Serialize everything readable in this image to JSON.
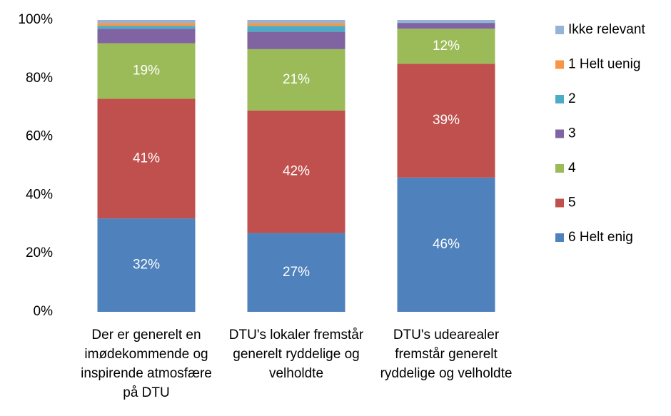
{
  "chart_data": {
    "type": "stacked_bar",
    "categories": [
      "Der er generelt en imødekommende og inspirende atmosfære på DTU",
      "DTU's lokaler fremstår generelt ryddelige og velholdte",
      "DTU's udearealer fremstår generelt ryddelige og velholdte"
    ],
    "series": [
      {
        "name": "6 Helt enig",
        "color": "#4f81bd",
        "values": [
          32,
          27,
          46
        ],
        "value_labels": [
          "32%",
          "27%",
          "46%"
        ]
      },
      {
        "name": "5",
        "color": "#c0504d",
        "values": [
          41,
          42,
          39
        ],
        "value_labels": [
          "41%",
          "42%",
          "39%"
        ]
      },
      {
        "name": "4",
        "color": "#9bbb59",
        "values": [
          19,
          21,
          12
        ],
        "value_labels": [
          "19%",
          "21%",
          "12%"
        ]
      },
      {
        "name": "3",
        "color": "#8064a2",
        "values": [
          5,
          6,
          2
        ]
      },
      {
        "name": "2",
        "color": "#4bacc6",
        "values": [
          1,
          2,
          0
        ]
      },
      {
        "name": "1 Helt uenig",
        "color": "#f79646",
        "values": [
          1,
          1,
          0
        ]
      },
      {
        "name": "Ikke relevant",
        "color": "#95b3d7",
        "values": [
          1,
          1,
          1
        ]
      }
    ],
    "ylim": [
      0,
      100
    ],
    "yticks": [
      {
        "value": 0,
        "label": "0%"
      },
      {
        "value": 20,
        "label": "20%"
      },
      {
        "value": 40,
        "label": "40%"
      },
      {
        "value": 60,
        "label": "60%"
      },
      {
        "value": 80,
        "label": "80%"
      },
      {
        "value": 100,
        "label": "100%"
      }
    ],
    "legend": "right"
  }
}
